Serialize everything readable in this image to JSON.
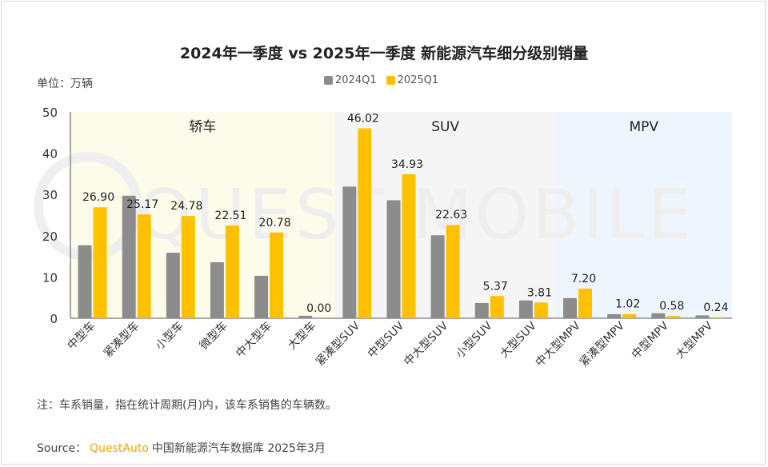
{
  "title": "2024年一季度 vs 2025年一季度 新能源汽车细分级别销量",
  "unit_label": "单位：万辆",
  "legend": [
    {
      "label": "2024Q1",
      "color": "#8c8c8c"
    },
    {
      "label": "2025Q1",
      "color": "#ffc000"
    }
  ],
  "note": "注：车系销量，指在统计周期(月)内，该车系销售的车辆数。",
  "source": {
    "prefix": "Source：",
    "brand": "QuestAuto",
    "text": "中国新能源汽车数据库 2025年3月"
  },
  "watermark": "QUEST MOBILE",
  "chart_data": {
    "type": "bar",
    "title": "2024年一季度 vs 2025年一季度 新能源汽车细分级别销量",
    "ylabel": "单位：万辆",
    "ylim": [
      0,
      50
    ],
    "yticks": [
      0,
      10,
      20,
      30,
      40,
      50
    ],
    "grid": false,
    "legend_position": "top-center",
    "categories": [
      "中型车",
      "紧凑型车",
      "小型车",
      "微型车",
      "中大型车",
      "大型车",
      "紧凑型SUV",
      "中型SUV",
      "中大型SUV",
      "小型SUV",
      "大型SUV",
      "中大型MPV",
      "紧凑型MPV",
      "中型MPV",
      "大型MPV"
    ],
    "series": [
      {
        "name": "2024Q1",
        "color": "#8c8c8c",
        "values": [
          17.7,
          29.7,
          15.9,
          13.6,
          10.3,
          0.6,
          31.9,
          28.6,
          20.1,
          3.7,
          4.3,
          4.9,
          1.0,
          1.2,
          0.7
        ]
      },
      {
        "name": "2025Q1",
        "color": "#ffc000",
        "values": [
          26.9,
          25.17,
          24.78,
          22.51,
          20.78,
          0.0,
          46.02,
          34.93,
          22.63,
          5.37,
          3.81,
          7.2,
          1.02,
          0.58,
          0.24
        ]
      }
    ],
    "data_labels_2025": [
      "26.90",
      "25.17",
      "24.78",
      "22.51",
      "20.78",
      "0.00",
      "46.02",
      "34.93",
      "22.63",
      "5.37",
      "3.81",
      "7.20",
      "1.02",
      "0.58",
      "0.24"
    ],
    "groups": [
      {
        "label": "轿车",
        "start": 0,
        "end": 5,
        "color": "#fdfbea"
      },
      {
        "label": "SUV",
        "start": 6,
        "end": 10,
        "color": "#f5f5f5"
      },
      {
        "label": "MPV",
        "start": 11,
        "end": 14,
        "color": "#eef5fc"
      }
    ]
  }
}
